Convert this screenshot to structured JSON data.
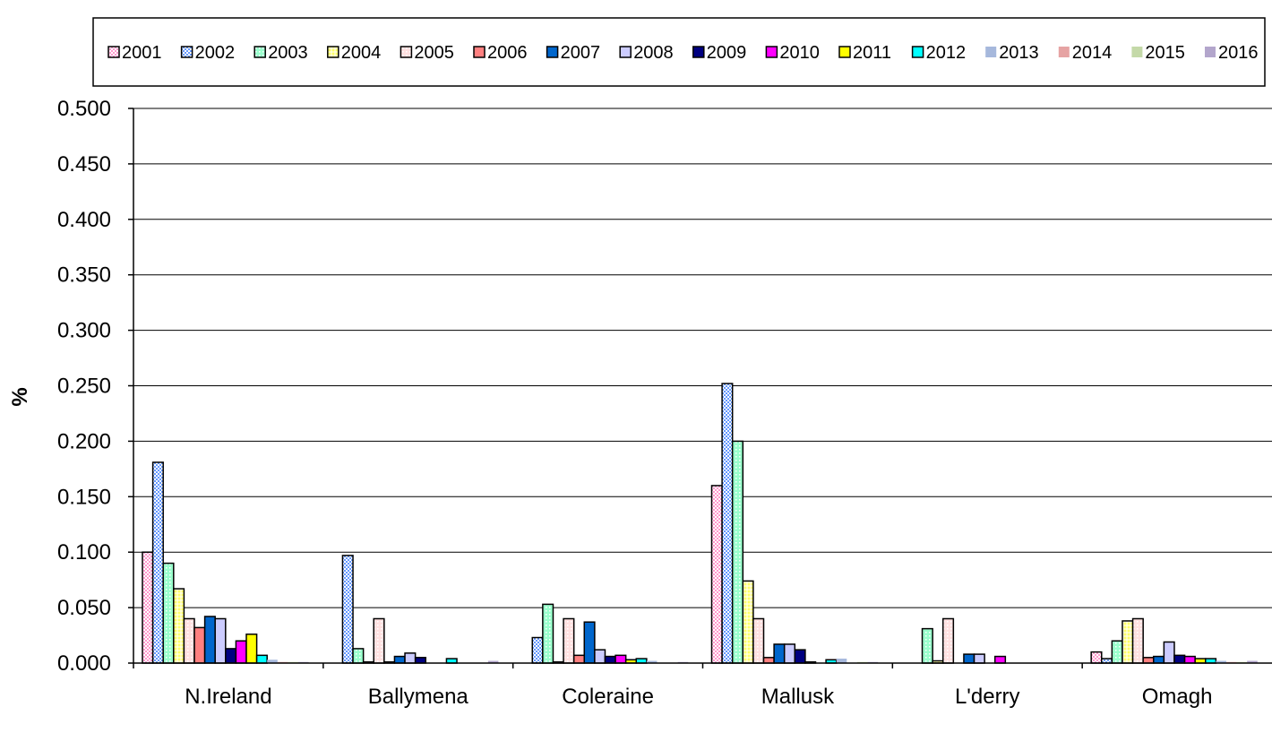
{
  "chart_data": {
    "type": "bar",
    "title": "",
    "xlabel": "",
    "ylabel": "%",
    "ylim": [
      0,
      0.5
    ],
    "yticks": [
      "0.000",
      "0.050",
      "0.100",
      "0.150",
      "0.200",
      "0.250",
      "0.300",
      "0.350",
      "0.400",
      "0.450",
      "0.500"
    ],
    "grid": true,
    "legend_position": "top",
    "categories": [
      "N.Ireland",
      "Ballymena",
      "Coleraine",
      "Mallusk",
      "L'derry",
      "Omagh"
    ],
    "series": [
      {
        "name": "2001",
        "color": "#FF99CC",
        "pattern": "checker",
        "values": [
          0.1,
          0,
          0,
          0.16,
          0,
          0.01
        ]
      },
      {
        "name": "2002",
        "color": "#6699FF",
        "pattern": "checker",
        "values": [
          0.181,
          0.097,
          0.023,
          0.252,
          0,
          0.004
        ]
      },
      {
        "name": "2003",
        "color": "#99FFCC",
        "pattern": "dots",
        "values": [
          0.09,
          0.013,
          0.053,
          0.2,
          0.031,
          0.02
        ]
      },
      {
        "name": "2004",
        "color": "#FFFF66",
        "pattern": "plaid",
        "values": [
          0.067,
          0.001,
          0.001,
          0.074,
          0.002,
          0.038
        ]
      },
      {
        "name": "2005",
        "color": "#FFE0E0",
        "pattern": "dots",
        "values": [
          0.04,
          0.04,
          0.04,
          0.04,
          0.04,
          0.04
        ]
      },
      {
        "name": "2006",
        "color": "#FF8080",
        "pattern": "solid",
        "values": [
          0.032,
          0.001,
          0.007,
          0.005,
          0,
          0.005
        ]
      },
      {
        "name": "2007",
        "color": "#0066CC",
        "pattern": "solid",
        "values": [
          0.042,
          0.006,
          0.037,
          0.017,
          0.008,
          0.006
        ]
      },
      {
        "name": "2008",
        "color": "#CCCCFF",
        "pattern": "solid",
        "values": [
          0.04,
          0.009,
          0.012,
          0.017,
          0.008,
          0.019
        ]
      },
      {
        "name": "2009",
        "color": "#000080",
        "pattern": "solid",
        "values": [
          0.013,
          0.005,
          0.006,
          0.012,
          0,
          0.007
        ]
      },
      {
        "name": "2010",
        "color": "#FF00FF",
        "pattern": "solid",
        "values": [
          0.02,
          0,
          0.007,
          0.001,
          0.006,
          0.006
        ]
      },
      {
        "name": "2011",
        "color": "#FFFF00",
        "pattern": "solid",
        "values": [
          0.026,
          0,
          0.003,
          0,
          0,
          0.004
        ]
      },
      {
        "name": "2012",
        "color": "#00FFFF",
        "pattern": "solid",
        "values": [
          0.007,
          0.004,
          0.004,
          0.003,
          0,
          0.004
        ]
      },
      {
        "name": "2013",
        "color": "#A6B8DC",
        "pattern": "noborder",
        "values": [
          0.003,
          0,
          0.002,
          0.004,
          0,
          0.002
        ]
      },
      {
        "name": "2014",
        "color": "#E6A3A3",
        "pattern": "noborder",
        "values": [
          0.001,
          0,
          0,
          0,
          0,
          0.001
        ]
      },
      {
        "name": "2015",
        "color": "#C4D9A8",
        "pattern": "noborder",
        "values": [
          0.001,
          0,
          0,
          0.001,
          0,
          0.001
        ]
      },
      {
        "name": "2016",
        "color": "#B3A6CC",
        "pattern": "noborder",
        "values": [
          0.001,
          0.002,
          0.001,
          0.001,
          0,
          0.002
        ]
      }
    ]
  }
}
